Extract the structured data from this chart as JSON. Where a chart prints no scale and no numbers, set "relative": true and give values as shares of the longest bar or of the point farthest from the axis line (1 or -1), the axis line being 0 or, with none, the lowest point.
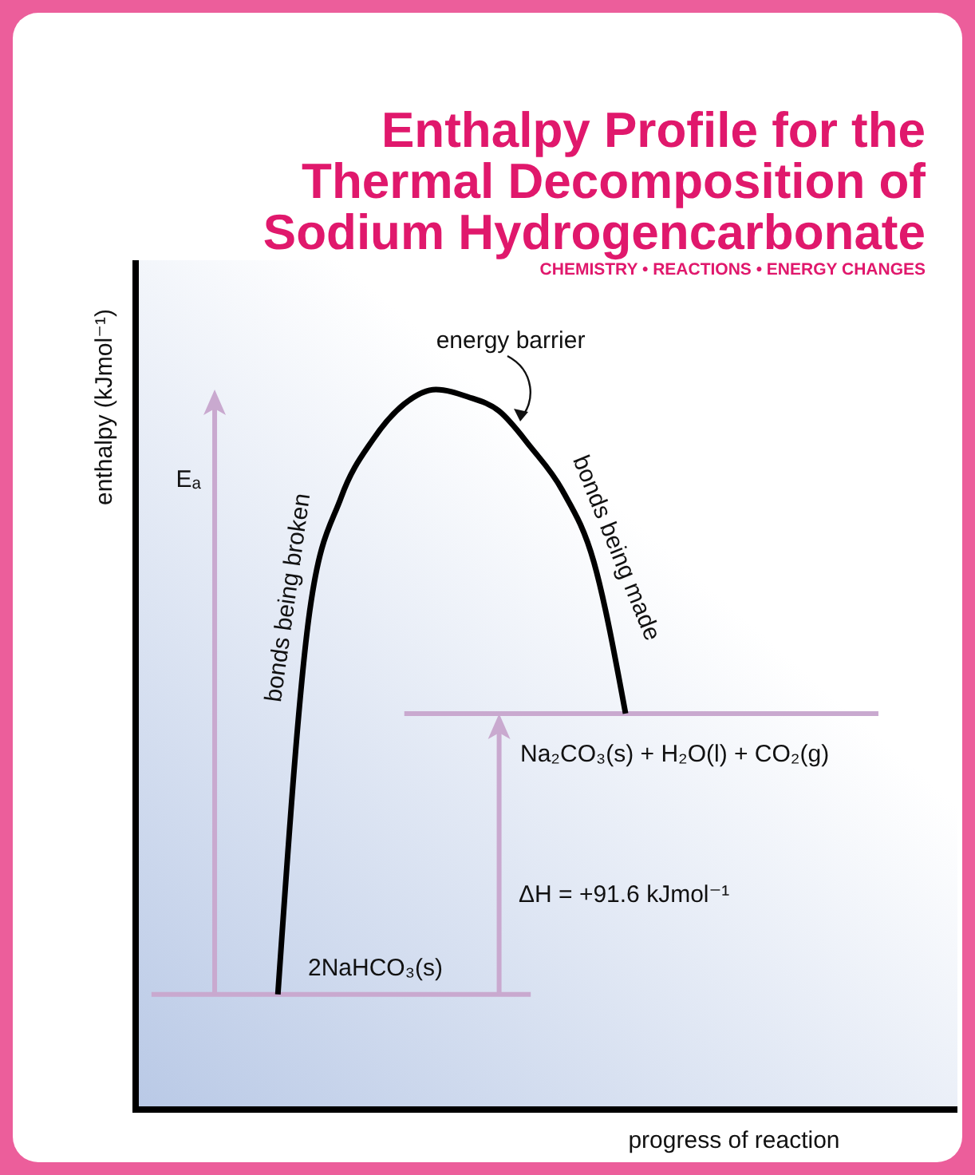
{
  "chart_data": {
    "type": "line",
    "relative": true,
    "title": "Enthalpy Profile for the Thermal Decomposition of Sodium Hydrogencarbonate",
    "subtitle": "CHEMISTRY • REACTIONS • ENERGY CHANGES",
    "xlabel": "progress of reaction",
    "ylabel": "enthalpy (kJmol⁻¹)",
    "categories": [
      null,
      null,
      null,
      null,
      null,
      null,
      null,
      null,
      null,
      null,
      null,
      null,
      null,
      null,
      null,
      null,
      null,
      null,
      null,
      null,
      null,
      null,
      null,
      null,
      null,
      null
    ],
    "series": [
      {
        "color": "#000000",
        "values": [
          null,
          null,
          null,
          null,
          0.16,
          0.69,
          0.85,
          0.93,
          0.98,
          1.0,
          0.99,
          0.97,
          0.92,
          0.86,
          0.76,
          0.55,
          null,
          null,
          null,
          null,
          null,
          null,
          null,
          null,
          null,
          null
        ]
      },
      {
        "color": "#c9a9cf",
        "values": [
          0.16,
          0.16,
          0.16,
          0.16,
          0.16,
          0.16,
          0.16,
          0.16,
          0.16,
          0.16,
          0.16,
          0.16,
          0.16,
          null,
          null,
          null,
          null,
          null,
          null,
          null,
          null,
          null,
          null,
          null,
          null,
          null
        ]
      },
      {
        "color": "#c9a9cf",
        "values": [
          null,
          null,
          null,
          null,
          null,
          null,
          null,
          null,
          0.55,
          0.55,
          0.55,
          0.55,
          0.55,
          0.55,
          0.55,
          0.55,
          0.55,
          0.55,
          0.55,
          0.55,
          0.55,
          0.55,
          0.55,
          0.55,
          null,
          null
        ]
      }
    ],
    "annotations": [
      "energy barrier",
      "bonds being broken",
      "bonds being made",
      "Eₐ",
      "ΔH = +91.6 kJmol⁻¹",
      "Na₂CO₃(s) + H₂O(l) + CO₂(g)",
      "2NaHCO₃(s)"
    ],
    "grid": false,
    "marker": "none",
    "line_style": "solid"
  }
}
